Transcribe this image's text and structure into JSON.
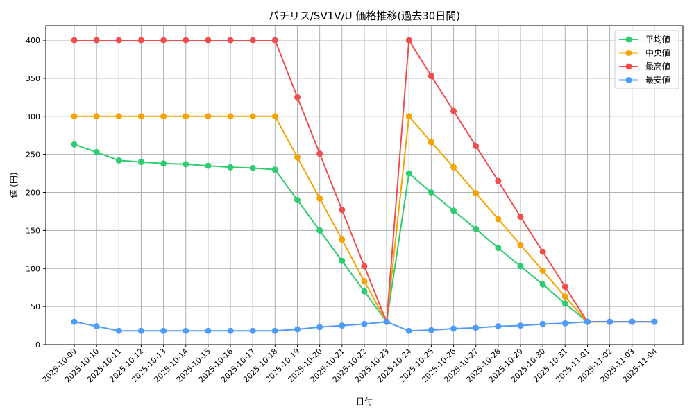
{
  "chart_data": {
    "type": "line",
    "title": "パチリス/SV1V/U 価格推移(過去30日間)",
    "xlabel": "日付",
    "ylabel": "値 (円)",
    "ylim": [
      0,
      420
    ],
    "yticks": [
      0,
      50,
      100,
      150,
      200,
      250,
      300,
      350,
      400
    ],
    "grid": true,
    "legend_position": "upper right",
    "categories": [
      "2025-10-09",
      "2025-10-10",
      "2025-10-11",
      "2025-10-12",
      "2025-10-13",
      "2025-10-14",
      "2025-10-15",
      "2025-10-16",
      "2025-10-17",
      "2025-10-18",
      "2025-10-19",
      "2025-10-20",
      "2025-10-21",
      "2025-10-22",
      "2025-10-23",
      "2025-10-24",
      "2025-10-25",
      "2025-10-26",
      "2025-10-27",
      "2025-10-28",
      "2025-10-29",
      "2025-10-30",
      "2025-10-31",
      "2025-11-01",
      "2025-11-02",
      "2025-11-03",
      "2025-11-04"
    ],
    "series": [
      {
        "name": "平均値",
        "color": "#2ecc71",
        "values": [
          263,
          253,
          242,
          240,
          238,
          237,
          235,
          233,
          232,
          230,
          190,
          150,
          110,
          70,
          30,
          225,
          200,
          176,
          152,
          127,
          103,
          79,
          54,
          30,
          30,
          30,
          30
        ]
      },
      {
        "name": "中央値",
        "color": "#f5a300",
        "values": [
          300,
          300,
          300,
          300,
          300,
          300,
          300,
          300,
          300,
          300,
          246,
          192,
          138,
          83,
          30,
          300,
          266,
          233,
          199,
          165,
          131,
          97,
          63,
          30,
          30,
          30,
          30
        ]
      },
      {
        "name": "最高値",
        "color": "#f04e4e",
        "values": [
          400,
          400,
          400,
          400,
          400,
          400,
          400,
          400,
          400,
          400,
          325,
          251,
          177,
          103,
          30,
          400,
          353,
          307,
          261,
          215,
          168,
          122,
          76,
          30,
          30,
          30,
          30
        ]
      },
      {
        "name": "最安値",
        "color": "#4d9bfa",
        "values": [
          30,
          24,
          18,
          18,
          18,
          18,
          18,
          18,
          18,
          18,
          20,
          23,
          25,
          27,
          30,
          18,
          19,
          21,
          22,
          24,
          25,
          27,
          28,
          30,
          30,
          30,
          30
        ]
      }
    ]
  }
}
